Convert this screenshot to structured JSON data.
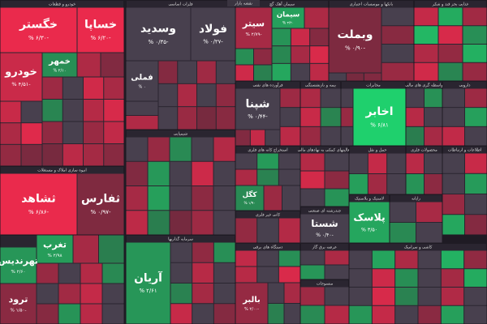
{
  "title": "نقشه بازار",
  "chart_data": {
    "type": "treemap",
    "sectors": [
      {
        "name": "خودرو و قطعات",
        "tiles": [
          "خگستر",
          "خساپا",
          "خودرو",
          "خمهر"
        ],
        "values": [
          -6.3,
          -6.2,
          -4.51,
          2.1
        ],
        "value_labels": [
          "% ۶/۳۰-",
          "% ۶/۲۰-",
          "% ۴/۵۱-",
          "% ۲/۱۰"
        ],
        "others": [
          -3.2,
          -1.1,
          -2.4,
          0.2,
          -4.8,
          -2.9,
          1.6,
          -0.3,
          -3.5,
          -5.1,
          -1.8,
          0.1,
          -2.2,
          -4.1,
          -0.6,
          -3.8,
          -2.7,
          -1.4,
          -4.4,
          -0.2,
          -3.1,
          -5.5,
          -1.9,
          -0.8
        ]
      },
      {
        "name": "انبوه سازی املاک و مستغلات",
        "tiles": [
          "ثشاهد",
          "ثفارس"
        ],
        "values": [
          -6.86,
          -0.97
        ],
        "value_labels": [
          "% ۶/۸۶-",
          "% ۰/۹۷-"
        ],
        "others": []
      },
      {
        "name": null,
        "tiles": [
          "تهرندیس",
          "تغرب",
          "ترود"
        ],
        "values": [
          2.6,
          2.98,
          -1.5
        ],
        "value_labels": [
          "% ۲/۶۰",
          "% ۲/۹۸",
          "% ۱/۵۰-"
        ],
        "others": [
          -2.1,
          0.3,
          -3.4,
          1.8,
          -0.4,
          -2.6,
          -4.2,
          0.2,
          -1.3,
          2.4,
          -3.7,
          -0.1,
          -2.8,
          1.2
        ]
      },
      {
        "name": "فلزات اساسی",
        "tiles": [
          "وسدید",
          "فولاد",
          "فملی"
        ],
        "values": [
          -0.35,
          -0.37,
          0
        ],
        "value_labels": [
          "% ۰/۳۵-",
          "% ۰/۳۷-",
          "% ۰"
        ],
        "others": [
          -1.2,
          -0.2,
          -2.5,
          0.1,
          -0.4,
          -3.1,
          -0.3,
          -1.7,
          -0.1,
          -2.2,
          -0.6,
          -1.4,
          -0.2,
          -3.3
        ]
      },
      {
        "name": "شیمیایی",
        "tiles": [],
        "values": [],
        "value_labels": [],
        "others": [
          -0.3,
          -2.1,
          1.9,
          -0.2,
          -3.4,
          -1.1,
          2.7,
          -0.4,
          -4.6,
          -0.1,
          -2.8,
          3.1,
          -0.3,
          -1.6,
          -0.2,
          -3.9,
          1.2,
          -0.5,
          -2.4,
          -0.1
        ]
      },
      {
        "name": "سرمایه گذاریها",
        "tiles": [
          "آریان"
        ],
        "values": [
          2.61
        ],
        "value_labels": [
          "% ۲/۶۱"
        ],
        "others": [
          -0.2,
          -1.8,
          2.2,
          -0.3,
          -3.6,
          -0.1,
          1.4,
          -2.7,
          -0.4,
          -4.3,
          0.2,
          -1.2
        ]
      },
      {
        "name": "سیمان آهک گچ",
        "tiles": [
          "سیتر",
          "سیمان"
        ],
        "values": [
          -2.79,
          3.2
        ],
        "value_labels": [
          "% ۲/۷۹-",
          "% ۳/۲۰"
        ],
        "others": [
          -3.1,
          2.4,
          -4.5,
          -1.2,
          1.7,
          -2.8,
          -5.2,
          3.6,
          -0.3,
          -3.9,
          2.1,
          -1.6,
          -4.7,
          1.3
        ]
      },
      {
        "name": "بانکها و موسسات اعتباری",
        "tiles": [
          "وبملت"
        ],
        "values": [
          -0.9
        ],
        "value_labels": [
          "% ۰/۹۰-"
        ],
        "others": [
          -0.2,
          -1.4,
          -0.3,
          -2.2,
          -0.1,
          -0.6,
          -1.1
        ]
      },
      {
        "name": "غذایی بجز قند و شکر",
        "tiles": [],
        "values": [],
        "value_labels": [],
        "others": [
          -4.2,
          3.8,
          -2.6,
          4.5,
          -5.1,
          2.2,
          -3.3,
          -1.9,
          4.1,
          -4.8,
          1.6,
          -2.1
        ]
      },
      {
        "name": "فرآورده های نفتی",
        "tiles": [
          "شپنا"
        ],
        "values": [
          -0.44
        ],
        "value_labels": [
          "% ۰/۴۴-"
        ],
        "others": [
          -2.4,
          -0.3,
          -3.8,
          -1.1,
          -4.2,
          -0.2
        ]
      },
      {
        "name": "بیمه و بازنشستگی",
        "tiles": [],
        "values": [],
        "value_labels": [],
        "others": [
          -3.1,
          -0.2,
          -4.4,
          1.5,
          -2.2,
          -0.1
        ]
      },
      {
        "name": "مخابرات",
        "tiles": [
          "اخابر"
        ],
        "values": [
          6.81
        ],
        "value_labels": [
          "% ۶/۸۱"
        ],
        "others": [
          -0.3,
          -2.1,
          -0.2
        ]
      },
      {
        "name": "واسطه گری های مالی",
        "tiles": [],
        "values": [],
        "value_labels": [],
        "others": [
          -0.2,
          2.3,
          -3.6,
          -0.4,
          1.1,
          -2.8
        ]
      },
      {
        "name": "دارویی",
        "tiles": [],
        "values": [],
        "value_labels": [],
        "others": [
          -0.3,
          -2.4,
          -0.1,
          3.2,
          -4.1,
          -0.2
        ]
      },
      {
        "name": "استخراج کانه های فلزی",
        "tiles": [
          "کگل"
        ],
        "values": [
          1.9
        ],
        "value_labels": [
          "% ۱/۹۰"
        ],
        "others": [
          -0.2,
          2.8,
          -0.4,
          -3.1,
          1.4,
          -0.1,
          -2.3,
          -0.3
        ]
      },
      {
        "name": "کانی غیر فلزی",
        "tiles": [],
        "values": [],
        "value_labels": [],
        "others": [
          -1.9,
          -0.2,
          -3.4
        ]
      },
      {
        "name": "دستگاه های برقی",
        "tiles": [
          "بالبر"
        ],
        "values": [
          -2.0
        ],
        "value_labels": [
          "% ۲/۰۰-"
        ],
        "others": [
          -4.1,
          -0.3,
          2.2,
          -3.6,
          -0.2,
          -5.2,
          -0.4,
          -2.9,
          1.3,
          -0.1
        ]
      },
      {
        "name": "فعالیتهای کمکی به نهادهای مالی",
        "tiles": [],
        "values": [],
        "value_labels": [],
        "others": [
          -3.4,
          -0.2,
          -4.9,
          -1.6,
          -0.3,
          2.4
        ]
      },
      {
        "name": "چندرشته ای صنعتی",
        "tiles": [
          "شستا"
        ],
        "values": [
          -0.4
        ],
        "value_labels": [
          "% ۰/۴۰-"
        ],
        "others": []
      },
      {
        "name": "عرضه برق گاز",
        "tiles": [],
        "values": [],
        "value_labels": [],
        "others": [
          -0.2,
          -3.1,
          2.6,
          -0.4
        ]
      },
      {
        "name": "حمل و نقل",
        "tiles": [],
        "values": [],
        "value_labels": [],
        "others": [
          -0.3,
          -4.2,
          -0.1,
          3.1,
          -2.6,
          -0.2
        ]
      },
      {
        "name": "لاستیک و پلاستیک",
        "tiles": [
          "پلاسک"
        ],
        "values": [
          3.5
        ],
        "value_labels": [
          "% ۳/۵۰"
        ],
        "others": []
      },
      {
        "name": "رایانه",
        "tiles": [],
        "values": [],
        "value_labels": [],
        "others": [
          -0.2,
          -2.9,
          1.8,
          -0.3
        ]
      },
      {
        "name": "محصولات فلزی",
        "tiles": [],
        "values": [],
        "value_labels": [],
        "others": [
          -3.7,
          -0.1,
          2.4,
          -1.6
        ]
      },
      {
        "name": "اطلاعات و ارتباطات",
        "tiles": [],
        "values": [],
        "value_labels": [],
        "others": [
          -0.3,
          -4.4,
          -0.2,
          2.9,
          -2.1,
          -0.4,
          3.6,
          -1.2
        ]
      },
      {
        "name": "کاشی و سرامیک",
        "tiles": [],
        "values": [],
        "value_labels": [],
        "others": [
          -0.2,
          3.4,
          -3.1,
          -0.3,
          4.2,
          -1.8,
          -0.1,
          -4.6,
          2.1,
          -0.4,
          -2.7,
          3.8,
          -0.2,
          -5.1,
          1.4,
          -0.3,
          -3.3,
          -0.1,
          2.6,
          -4.2,
          -0.2,
          -1.5,
          3.1,
          -0.4
        ]
      },
      {
        "name": "منسوجات",
        "tiles": [],
        "values": [],
        "value_labels": [],
        "others": [
          -2.4,
          -0.2,
          1.9,
          -3.5
        ]
      }
    ]
  }
}
